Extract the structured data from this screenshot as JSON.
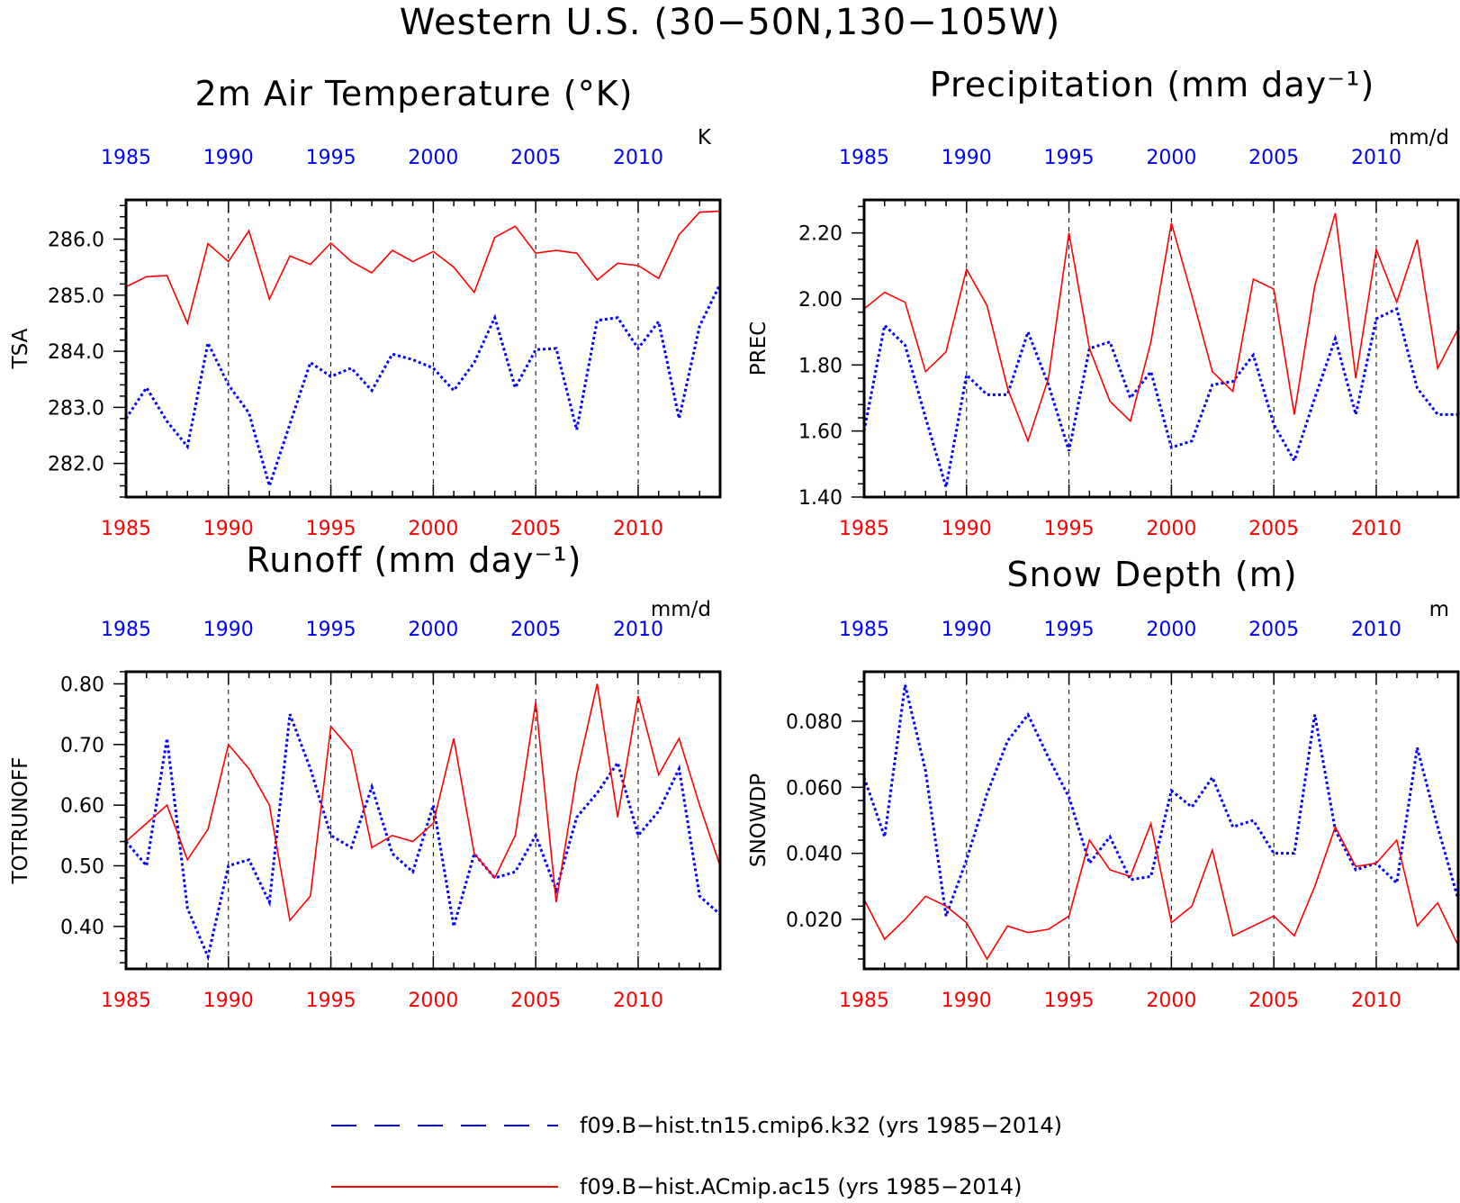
{
  "figure_title": "Western U.S. (30−50N,130−105W)",
  "colors": {
    "case1": "#0000ff",
    "case2": "#ff0000",
    "axis": "#000000"
  },
  "legend": [
    {
      "label": "f09.B−hist.tn15.cmip6.k32 (yrs 1985−2014)",
      "color": "#0000ff",
      "style": "dashed"
    },
    {
      "label": "f09.B−hist.ACmip.ac15 (yrs 1985−2014)",
      "color": "#ff0000",
      "style": "solid"
    }
  ],
  "chart_data": [
    {
      "type": "line",
      "title": "2m Air Temperature (°K)",
      "ylabel": "TSA",
      "units": "K",
      "x": [
        1985,
        1986,
        1987,
        1988,
        1989,
        1990,
        1991,
        1992,
        1993,
        1994,
        1995,
        1996,
        1997,
        1998,
        1999,
        2000,
        2001,
        2002,
        2003,
        2004,
        2005,
        2006,
        2007,
        2008,
        2009,
        2010,
        2011,
        2012,
        2013,
        2014
      ],
      "xticks": [
        "1985",
        "1990",
        "1995",
        "2000",
        "2005",
        "2010"
      ],
      "xlim": [
        1985,
        2014
      ],
      "ylim": [
        281.4,
        286.7
      ],
      "yticks": [
        "282.0",
        "283.0",
        "284.0",
        "285.0",
        "286.0"
      ],
      "grid": "vertical dashed at x ticks",
      "series": [
        {
          "name": "f09.B−hist.tn15.cmip6.k32",
          "color": "#0000ff",
          "style": "dashed",
          "values": [
            282.8,
            283.35,
            282.75,
            282.3,
            284.15,
            283.4,
            282.9,
            281.6,
            282.7,
            283.8,
            283.55,
            283.7,
            283.3,
            283.95,
            283.85,
            283.7,
            283.3,
            283.8,
            284.6,
            283.35,
            284.03,
            284.05,
            282.6,
            284.55,
            284.6,
            284.05,
            284.53,
            282.8,
            284.45,
            285.2
          ]
        },
        {
          "name": "f09.B−hist.ACmip.ac15",
          "color": "#ff0000",
          "style": "solid",
          "values": [
            285.15,
            285.33,
            285.35,
            284.5,
            285.92,
            285.6,
            286.15,
            284.93,
            285.7,
            285.55,
            285.93,
            285.6,
            285.4,
            285.8,
            285.6,
            285.78,
            285.5,
            285.05,
            286.03,
            286.23,
            285.75,
            285.8,
            285.75,
            285.27,
            285.57,
            285.53,
            285.3,
            286.08,
            286.48,
            286.5
          ]
        }
      ]
    },
    {
      "type": "line",
      "title": "Precipitation (mm day⁻¹)",
      "ylabel": "PREC",
      "units": "mm/d",
      "x": [
        1985,
        1986,
        1987,
        1988,
        1989,
        1990,
        1991,
        1992,
        1993,
        1994,
        1995,
        1996,
        1997,
        1998,
        1999,
        2000,
        2001,
        2002,
        2003,
        2004,
        2005,
        2006,
        2007,
        2008,
        2009,
        2010,
        2011,
        2012,
        2013,
        2014
      ],
      "xticks": [
        "1985",
        "1990",
        "1995",
        "2000",
        "2005",
        "2010"
      ],
      "xlim": [
        1985,
        2014
      ],
      "ylim": [
        1.4,
        2.3
      ],
      "yticks": [
        "1.40",
        "1.60",
        "1.80",
        "2.00",
        "2.20"
      ],
      "grid": "vertical dashed at x ticks",
      "series": [
        {
          "name": "f09.B−hist.tn15.cmip6.k32",
          "color": "#0000ff",
          "style": "dashed",
          "values": [
            1.6,
            1.92,
            1.86,
            1.64,
            1.43,
            1.77,
            1.71,
            1.71,
            1.9,
            1.74,
            1.54,
            1.85,
            1.87,
            1.7,
            1.78,
            1.55,
            1.57,
            1.74,
            1.75,
            1.83,
            1.62,
            1.51,
            1.7,
            1.88,
            1.65,
            1.94,
            1.97,
            1.73,
            1.65,
            1.65
          ]
        },
        {
          "name": "f09.B−hist.ACmip.ac15",
          "color": "#ff0000",
          "style": "solid",
          "values": [
            1.97,
            2.02,
            1.99,
            1.78,
            1.84,
            2.09,
            1.98,
            1.73,
            1.57,
            1.76,
            2.2,
            1.85,
            1.69,
            1.63,
            1.87,
            2.23,
            2.01,
            1.78,
            1.72,
            2.06,
            2.03,
            1.65,
            2.04,
            2.26,
            1.76,
            2.15,
            1.99,
            2.18,
            1.79,
            1.91
          ]
        }
      ]
    },
    {
      "type": "line",
      "title": "Runoff (mm day⁻¹)",
      "ylabel": "TOTRUNOFF",
      "units": "mm/d",
      "x": [
        1985,
        1986,
        1987,
        1988,
        1989,
        1990,
        1991,
        1992,
        1993,
        1994,
        1995,
        1996,
        1997,
        1998,
        1999,
        2000,
        2001,
        2002,
        2003,
        2004,
        2005,
        2006,
        2007,
        2008,
        2009,
        2010,
        2011,
        2012,
        2013,
        2014
      ],
      "xticks": [
        "1985",
        "1990",
        "1995",
        "2000",
        "2005",
        "2010"
      ],
      "xlim": [
        1985,
        2014
      ],
      "ylim": [
        0.33,
        0.82
      ],
      "yticks": [
        "0.40",
        "0.50",
        "0.60",
        "0.70",
        "0.80"
      ],
      "grid": "vertical dashed at x ticks",
      "series": [
        {
          "name": "f09.B−hist.tn15.cmip6.k32",
          "color": "#0000ff",
          "style": "dashed",
          "values": [
            0.54,
            0.5,
            0.71,
            0.43,
            0.35,
            0.5,
            0.51,
            0.44,
            0.75,
            0.66,
            0.55,
            0.53,
            0.63,
            0.52,
            0.49,
            0.6,
            0.4,
            0.52,
            0.48,
            0.49,
            0.55,
            0.46,
            0.58,
            0.62,
            0.67,
            0.55,
            0.59,
            0.66,
            0.45,
            0.42
          ]
        },
        {
          "name": "f09.B−hist.ACmip.ac15",
          "color": "#ff0000",
          "style": "solid",
          "values": [
            0.54,
            0.57,
            0.6,
            0.51,
            0.56,
            0.7,
            0.66,
            0.6,
            0.41,
            0.45,
            0.73,
            0.69,
            0.53,
            0.55,
            0.54,
            0.57,
            0.71,
            0.52,
            0.48,
            0.55,
            0.77,
            0.44,
            0.65,
            0.8,
            0.58,
            0.78,
            0.65,
            0.71,
            0.6,
            0.5
          ]
        }
      ]
    },
    {
      "type": "line",
      "title": "Snow Depth (m)",
      "ylabel": "SNOWDP",
      "units": "m",
      "x": [
        1985,
        1986,
        1987,
        1988,
        1989,
        1990,
        1991,
        1992,
        1993,
        1994,
        1995,
        1996,
        1997,
        1998,
        1999,
        2000,
        2001,
        2002,
        2003,
        2004,
        2005,
        2006,
        2007,
        2008,
        2009,
        2010,
        2011,
        2012,
        2013,
        2014
      ],
      "xticks": [
        "1985",
        "1990",
        "1995",
        "2000",
        "2005",
        "2010"
      ],
      "xlim": [
        1985,
        2014
      ],
      "ylim": [
        0.005,
        0.095
      ],
      "yticks": [
        "0.020",
        "0.040",
        "0.060",
        "0.080"
      ],
      "grid": "vertical dashed at x ticks",
      "series": [
        {
          "name": "f09.B−hist.tn15.cmip6.k32",
          "color": "#0000ff",
          "style": "dashed",
          "values": [
            0.063,
            0.045,
            0.091,
            0.065,
            0.021,
            0.038,
            0.058,
            0.074,
            0.082,
            0.069,
            0.057,
            0.037,
            0.045,
            0.032,
            0.033,
            0.059,
            0.054,
            0.063,
            0.048,
            0.05,
            0.04,
            0.04,
            0.082,
            0.047,
            0.035,
            0.037,
            0.031,
            0.072,
            0.048,
            0.026
          ]
        },
        {
          "name": "f09.B−hist.ACmip.ac15",
          "color": "#ff0000",
          "style": "solid",
          "values": [
            0.026,
            0.014,
            0.02,
            0.027,
            0.024,
            0.019,
            0.008,
            0.018,
            0.016,
            0.017,
            0.021,
            0.044,
            0.035,
            0.033,
            0.049,
            0.019,
            0.024,
            0.041,
            0.015,
            0.018,
            0.021,
            0.015,
            0.03,
            0.048,
            0.036,
            0.037,
            0.044,
            0.018,
            0.025,
            0.012
          ]
        }
      ]
    }
  ]
}
